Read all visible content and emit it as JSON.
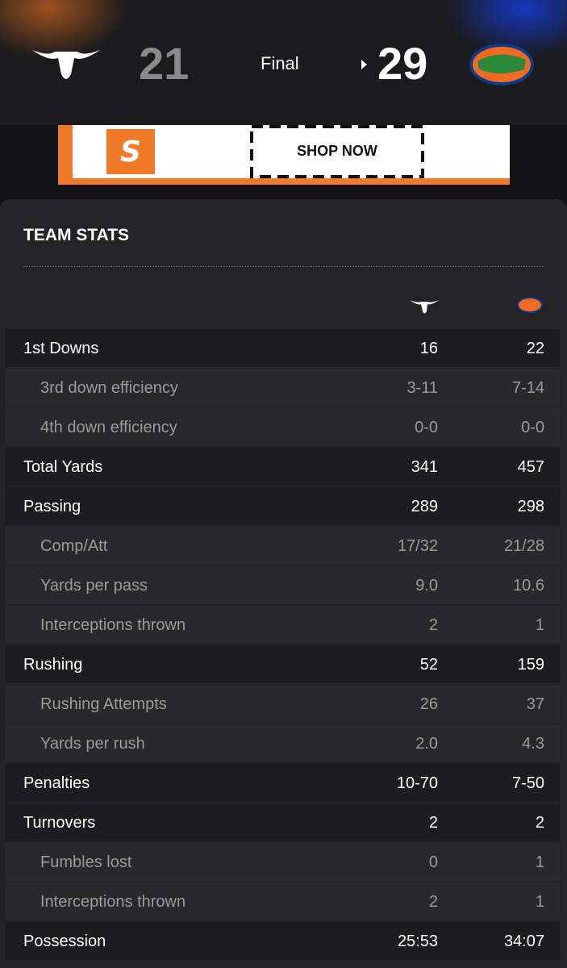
{
  "scoreboard": {
    "away_score": 21,
    "status": "Final",
    "home_score": 29
  },
  "ad": {
    "button": "SHOP NOW"
  },
  "team_stats": {
    "title": "TEAM STATS",
    "groups": [
      {
        "row": [
          "1st Downs",
          "16",
          "22"
        ],
        "sub": [
          [
            "3rd down efficiency",
            "3-11",
            "7-14"
          ],
          [
            "4th down efficiency",
            "0-0",
            "0-0"
          ]
        ]
      },
      {
        "row": [
          "Total Yards",
          "341",
          "457"
        ],
        "sub": []
      },
      {
        "row": [
          "Passing",
          "289",
          "298"
        ],
        "sub": [
          [
            "Comp/Att",
            "17/32",
            "21/28"
          ],
          [
            "Yards per pass",
            "9.0",
            "10.6"
          ],
          [
            "Interceptions thrown",
            "2",
            "1"
          ]
        ]
      },
      {
        "row": [
          "Rushing",
          "52",
          "159"
        ],
        "sub": [
          [
            "Rushing Attempts",
            "26",
            "37"
          ],
          [
            "Yards per rush",
            "2.0",
            "4.3"
          ]
        ]
      },
      {
        "row": [
          "Penalties",
          "10-70",
          "7-50"
        ],
        "sub": []
      },
      {
        "row": [
          "Turnovers",
          "2",
          "2"
        ],
        "sub": [
          [
            "Fumbles lost",
            "0",
            "1"
          ],
          [
            "Interceptions thrown",
            "2",
            "1"
          ]
        ]
      },
      {
        "row": [
          "Possession",
          "25:53",
          "34:07"
        ],
        "sub": []
      }
    ]
  }
}
